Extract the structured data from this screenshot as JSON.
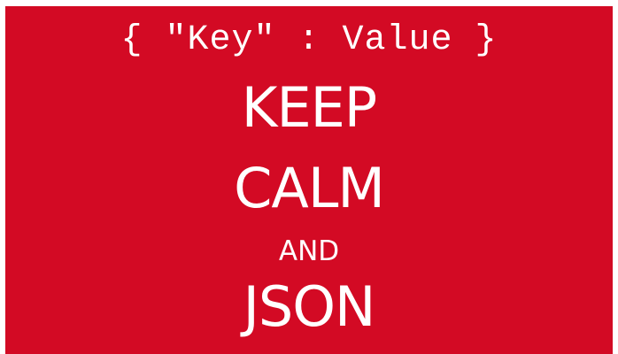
{
  "poster": {
    "background_color": "#d30a24",
    "text_color": "#ffffff",
    "json_line": "{ \"Key\" : Value }",
    "line1": "KEEP",
    "line2": "CALM",
    "line3": "AND",
    "line4": "JSON"
  }
}
